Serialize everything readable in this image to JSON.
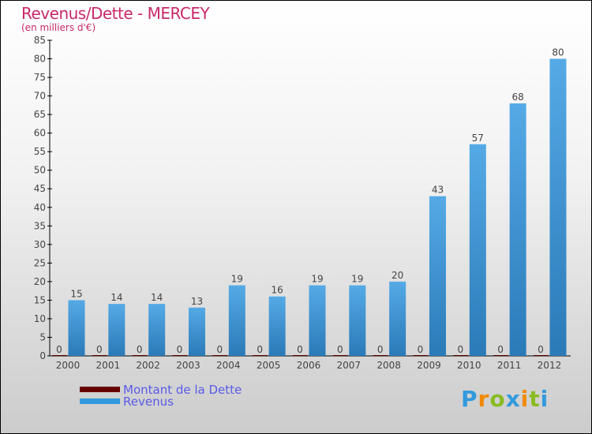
{
  "chart_data": {
    "type": "bar",
    "title": "Revenus/Dette - MERCEY",
    "subtitle": "(en milliers d'€)",
    "categories": [
      "2000",
      "2001",
      "2002",
      "2003",
      "2004",
      "2005",
      "2006",
      "2007",
      "2008",
      "2009",
      "2010",
      "2011",
      "2012"
    ],
    "series": [
      {
        "name": "Montant de la Dette",
        "color": "#660000",
        "values": [
          0,
          0,
          0,
          0,
          0,
          0,
          0,
          0,
          0,
          0,
          0,
          0,
          0
        ]
      },
      {
        "name": "Revenus",
        "color": "#3399dd",
        "values": [
          15,
          14,
          14,
          13,
          19,
          16,
          19,
          19,
          20,
          43,
          57,
          68,
          80
        ]
      }
    ],
    "ylim": [
      0,
      85
    ],
    "yticks": [
      0,
      5,
      10,
      15,
      20,
      25,
      30,
      35,
      40,
      45,
      50,
      55,
      60,
      65,
      70,
      75,
      80,
      85
    ],
    "legend": "bottom-left"
  },
  "logo": "Proxiti"
}
